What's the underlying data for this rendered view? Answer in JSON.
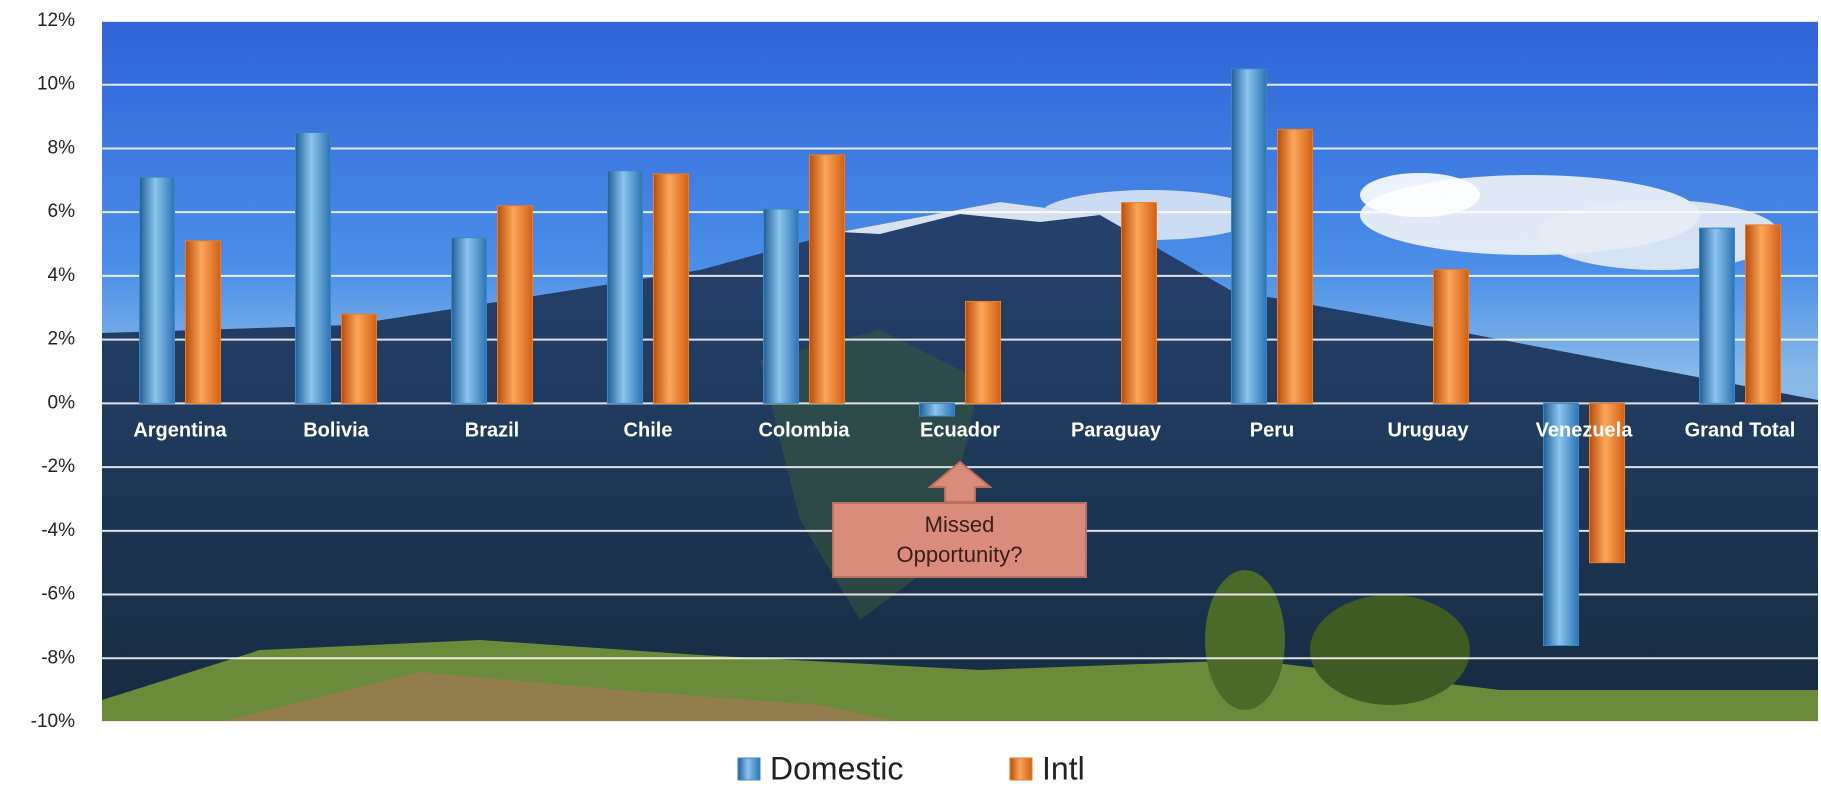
{
  "chart_data": {
    "type": "bar",
    "categories": [
      "Argentina",
      "Bolivia",
      "Brazil",
      "Chile",
      "Colombia",
      "Ecuador",
      "Paraguay",
      "Peru",
      "Uruguay",
      "Venezuela",
      "Grand Total"
    ],
    "series": [
      {
        "name": "Domestic",
        "color": "#3b86c6",
        "values": [
          7.1,
          8.5,
          5.2,
          7.3,
          6.1,
          -0.4,
          null,
          10.5,
          null,
          -7.6,
          5.5
        ]
      },
      {
        "name": "Intl",
        "color": "#ee7a24",
        "values": [
          5.1,
          2.8,
          6.2,
          7.2,
          7.8,
          3.2,
          6.3,
          8.6,
          4.2,
          -5.0,
          5.6
        ]
      }
    ],
    "ylim": [
      -10,
      12
    ],
    "yticks": [
      {
        "value": -10,
        "label": "-10%"
      },
      {
        "value": -8,
        "label": "-8%"
      },
      {
        "value": -6,
        "label": "-6%"
      },
      {
        "value": -4,
        "label": "-4%"
      },
      {
        "value": -2,
        "label": "-2%"
      },
      {
        "value": 0,
        "label": "0%"
      },
      {
        "value": 2,
        "label": "2%"
      },
      {
        "value": 4,
        "label": "4%"
      },
      {
        "value": 6,
        "label": "6%"
      },
      {
        "value": 8,
        "label": "8%"
      },
      {
        "value": 10,
        "label": "10%"
      },
      {
        "value": 12,
        "label": "12%"
      }
    ],
    "grid": true,
    "legend": "bottom",
    "annotation": "Missed Opportunity?"
  }
}
